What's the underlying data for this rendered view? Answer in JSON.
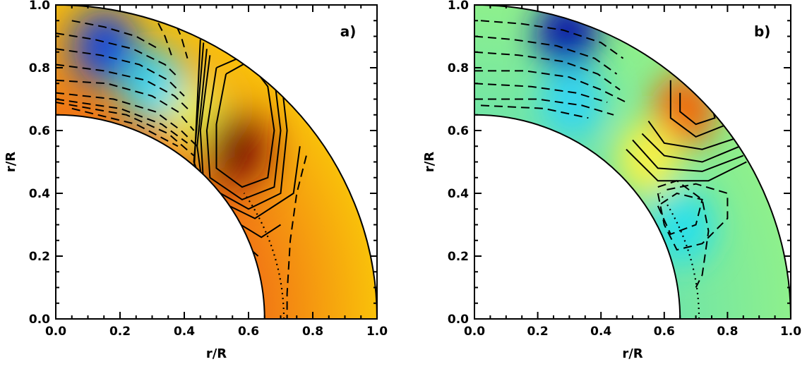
{
  "chart_data": [
    {
      "type": "heatmap",
      "panel_label": "a)",
      "xlabel": "r/R",
      "ylabel": "r/R",
      "xlim": [
        0.0,
        1.0
      ],
      "ylim": [
        0.0,
        1.0
      ],
      "x_ticks": [
        "0.0",
        "0.2",
        "0.4",
        "0.6",
        "0.8",
        "1.0"
      ],
      "y_ticks": [
        "0.0",
        "0.2",
        "0.4",
        "0.6",
        "0.8",
        "1.0"
      ],
      "domain": {
        "inner_radius": 0.65,
        "outer_radius": 1.0,
        "tachocline_radius": 0.71
      },
      "colormap": [
        "#00008f",
        "#0060ff",
        "#00ffff",
        "#7fff7f",
        "#ffff00",
        "#ff7f00",
        "#ff0000",
        "#7f0000"
      ],
      "background_colors": {
        "outer": "#f9c10a",
        "inner": "#f27a14"
      },
      "features": [
        {
          "name": "blue-polar-region",
          "r": 0.88,
          "theta_deg": 80,
          "color": "#0b3fe0"
        },
        {
          "name": "cyan-band",
          "r": 0.8,
          "theta_deg": 67,
          "color": "#26dcff"
        },
        {
          "name": "yellow-ridge",
          "r": 0.78,
          "theta_deg": 55,
          "color": "#f0f040"
        },
        {
          "name": "dark-red-core",
          "r": 0.78,
          "theta_deg": 44,
          "color": "#7d0b05"
        }
      ],
      "contours": {
        "solid": "positive",
        "dashed": "negative",
        "dotted": "tachocline"
      }
    },
    {
      "type": "heatmap",
      "panel_label": "b)",
      "xlabel": "r/R",
      "ylabel": "r/R",
      "xlim": [
        0.0,
        1.0
      ],
      "ylim": [
        0.0,
        1.0
      ],
      "x_ticks": [
        "0.0",
        "0.2",
        "0.4",
        "0.6",
        "0.8",
        "1.0"
      ],
      "y_ticks": [
        "0.0",
        "0.2",
        "0.4",
        "0.6",
        "0.8",
        "1.0"
      ],
      "domain": {
        "inner_radius": 0.65,
        "outer_radius": 1.0,
        "tachocline_radius": 0.71
      },
      "colormap": [
        "#00008f",
        "#0060ff",
        "#00ffff",
        "#7fff7f",
        "#ffff00",
        "#ff7f00",
        "#ff0000",
        "#7f0000"
      ],
      "background_colors": {
        "outer": "#8ef08c",
        "inner": "#72e6a6"
      },
      "features": [
        {
          "name": "dark-blue-polar-region",
          "r": 0.95,
          "theta_deg": 72,
          "color": "#0a1fa8"
        },
        {
          "name": "cyan-band",
          "r": 0.76,
          "theta_deg": 66,
          "color": "#35d6f0"
        },
        {
          "name": "orange-core",
          "r": 0.94,
          "theta_deg": 45,
          "color": "#f06a10"
        },
        {
          "name": "yellow-lobe",
          "r": 0.75,
          "theta_deg": 43,
          "color": "#f4f24a"
        },
        {
          "name": "cyan-lower-cell",
          "r": 0.72,
          "theta_deg": 24,
          "color": "#2ce0e8"
        }
      ],
      "contours": {
        "solid": "positive",
        "dashed": "negative",
        "dotted": "tachocline"
      }
    }
  ]
}
